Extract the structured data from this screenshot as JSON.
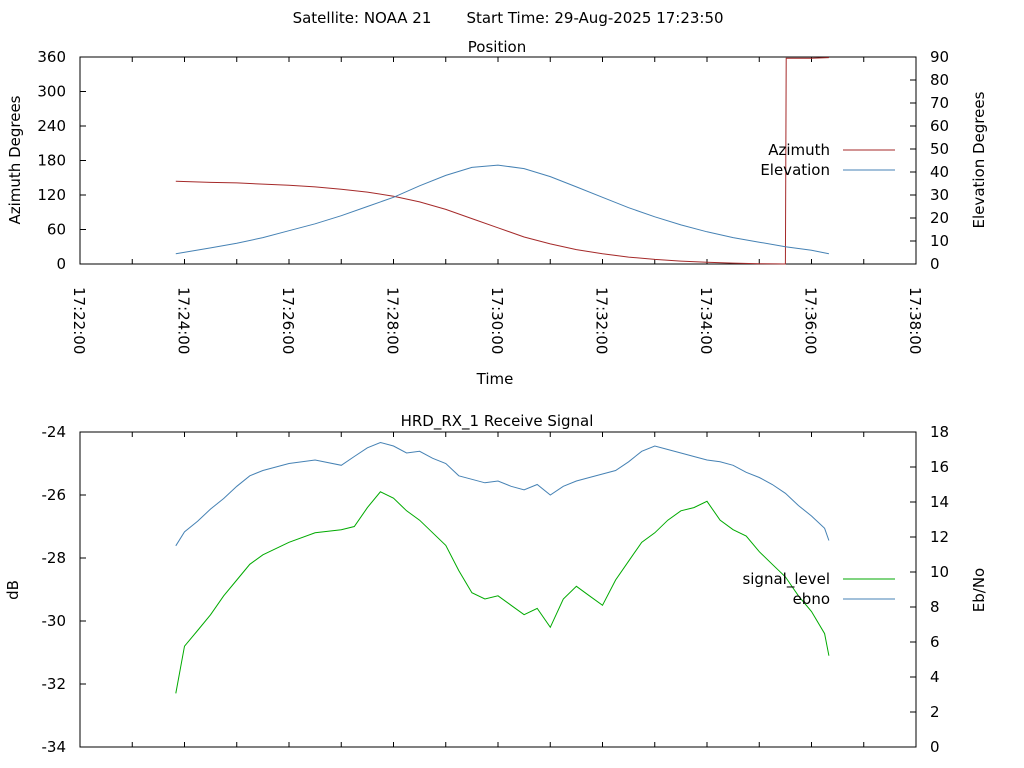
{
  "header": {
    "satellite_label": "Satellite: NOAA 21",
    "start_time_label": "Start Time: 29-Aug-2025 17:23:50"
  },
  "chart_data": [
    {
      "type": "line",
      "title": "Position",
      "xlabel": "Time",
      "ylabel": "Azimuth Degrees",
      "y2label": "Elevation Degrees",
      "xlim": [
        "17:22:00",
        "17:38:00"
      ],
      "ylim": [
        0,
        360
      ],
      "y2lim": [
        0,
        90
      ],
      "x_ticks": [
        "17:22:00",
        "17:24:00",
        "17:26:00",
        "17:28:00",
        "17:30:00",
        "17:32:00",
        "17:34:00",
        "17:36:00",
        "17:38:00"
      ],
      "y_ticks": [
        "0",
        "60",
        "120",
        "180",
        "240",
        "300",
        "360"
      ],
      "y2_ticks": [
        "0",
        "10",
        "20",
        "30",
        "40",
        "50",
        "60",
        "70",
        "80",
        "90"
      ],
      "legend_position": "right",
      "grid": false,
      "series": [
        {
          "name": "Azimuth",
          "axis": "left",
          "color": "#a52a2a",
          "x": [
            "17:23:50",
            "17:24:30",
            "17:25:00",
            "17:25:30",
            "17:26:00",
            "17:26:30",
            "17:27:00",
            "17:27:30",
            "17:28:00",
            "17:28:30",
            "17:29:00",
            "17:29:30",
            "17:30:00",
            "17:30:30",
            "17:31:00",
            "17:31:30",
            "17:32:00",
            "17:32:30",
            "17:33:00",
            "17:33:30",
            "17:34:00",
            "17:34:30",
            "17:35:00",
            "17:35:20",
            "17:35:30",
            "17:35:31",
            "17:36:00",
            "17:36:20"
          ],
          "values": [
            144,
            142,
            141,
            139,
            137,
            134,
            130,
            125,
            118,
            108,
            95,
            79,
            63,
            47,
            35,
            25,
            18,
            12,
            8,
            5,
            3,
            1.5,
            0.5,
            0.2,
            0,
            358,
            358,
            359
          ]
        },
        {
          "name": "Elevation",
          "axis": "right",
          "color": "#4682b4",
          "x": [
            "17:23:50",
            "17:24:30",
            "17:25:00",
            "17:25:30",
            "17:26:00",
            "17:26:30",
            "17:27:00",
            "17:27:30",
            "17:28:00",
            "17:28:30",
            "17:29:00",
            "17:29:30",
            "17:30:00",
            "17:30:30",
            "17:31:00",
            "17:31:30",
            "17:32:00",
            "17:32:30",
            "17:33:00",
            "17:33:30",
            "17:34:00",
            "17:34:30",
            "17:35:00",
            "17:35:30",
            "17:36:00",
            "17:36:20"
          ],
          "values": [
            4.5,
            7,
            9,
            11.5,
            14.5,
            17.5,
            21,
            25,
            29,
            34,
            38.5,
            42,
            43,
            41.5,
            38,
            33.5,
            29,
            24.5,
            20.5,
            17,
            14,
            11.5,
            9.5,
            7.5,
            6,
            4.5
          ]
        }
      ]
    },
    {
      "type": "line",
      "title": "HRD_RX_1 Receive Signal",
      "ylabel": "dB",
      "y2label": "Eb/No",
      "ylim": [
        -34,
        -24
      ],
      "y2lim": [
        0,
        18
      ],
      "y_ticks": [
        "-24",
        "-26",
        "-28",
        "-30",
        "-32",
        "-34"
      ],
      "y2_ticks": [
        "0",
        "2",
        "4",
        "6",
        "8",
        "10",
        "12",
        "14",
        "16",
        "18"
      ],
      "legend_position": "right",
      "grid": false,
      "series": [
        {
          "name": "signal_level",
          "axis": "left",
          "color": "#00aa00",
          "x": [
            "17:23:50",
            "17:24:00",
            "17:24:15",
            "17:24:30",
            "17:24:45",
            "17:25:00",
            "17:25:15",
            "17:25:30",
            "17:26:00",
            "17:26:30",
            "17:27:00",
            "17:27:15",
            "17:27:30",
            "17:27:45",
            "17:28:00",
            "17:28:15",
            "17:28:30",
            "17:28:45",
            "17:29:00",
            "17:29:15",
            "17:29:30",
            "17:29:45",
            "17:30:00",
            "17:30:15",
            "17:30:30",
            "17:30:45",
            "17:31:00",
            "17:31:15",
            "17:31:30",
            "17:31:45",
            "17:32:00",
            "17:32:15",
            "17:32:30",
            "17:32:45",
            "17:33:00",
            "17:33:15",
            "17:33:30",
            "17:33:45",
            "17:34:00",
            "17:34:15",
            "17:34:30",
            "17:34:45",
            "17:35:00",
            "17:35:15",
            "17:35:30",
            "17:35:45",
            "17:36:00",
            "17:36:15",
            "17:36:20"
          ],
          "values": [
            -32.3,
            -30.8,
            -30.3,
            -29.8,
            -29.2,
            -28.7,
            -28.2,
            -27.9,
            -27.5,
            -27.2,
            -27.1,
            -27.0,
            -26.4,
            -25.9,
            -26.1,
            -26.5,
            -26.8,
            -27.2,
            -27.6,
            -28.4,
            -29.1,
            -29.3,
            -29.2,
            -29.5,
            -29.8,
            -29.6,
            -30.2,
            -29.3,
            -28.9,
            -29.2,
            -29.5,
            -28.7,
            -28.1,
            -27.5,
            -27.2,
            -26.8,
            -26.5,
            -26.4,
            -26.2,
            -26.8,
            -27.1,
            -27.3,
            -27.8,
            -28.2,
            -28.6,
            -29.2,
            -29.7,
            -30.4,
            -31.1
          ]
        },
        {
          "name": "ebno",
          "axis": "right",
          "color": "#4682b4",
          "x": [
            "17:23:50",
            "17:24:00",
            "17:24:15",
            "17:24:30",
            "17:24:45",
            "17:25:00",
            "17:25:15",
            "17:25:30",
            "17:26:00",
            "17:26:30",
            "17:27:00",
            "17:27:15",
            "17:27:30",
            "17:27:45",
            "17:28:00",
            "17:28:15",
            "17:28:30",
            "17:28:45",
            "17:29:00",
            "17:29:15",
            "17:29:30",
            "17:29:45",
            "17:30:00",
            "17:30:15",
            "17:30:30",
            "17:30:45",
            "17:31:00",
            "17:31:15",
            "17:31:30",
            "17:31:45",
            "17:32:00",
            "17:32:15",
            "17:32:30",
            "17:32:45",
            "17:33:00",
            "17:33:15",
            "17:33:30",
            "17:33:45",
            "17:34:00",
            "17:34:15",
            "17:34:30",
            "17:34:45",
            "17:35:00",
            "17:35:15",
            "17:35:30",
            "17:35:45",
            "17:36:00",
            "17:36:15",
            "17:36:20"
          ],
          "values": [
            11.5,
            12.3,
            12.9,
            13.6,
            14.2,
            14.9,
            15.5,
            15.8,
            16.2,
            16.4,
            16.1,
            16.6,
            17.1,
            17.4,
            17.2,
            16.8,
            16.9,
            16.5,
            16.2,
            15.5,
            15.3,
            15.1,
            15.2,
            14.9,
            14.7,
            15.0,
            14.4,
            14.9,
            15.2,
            15.4,
            15.6,
            15.8,
            16.3,
            16.9,
            17.2,
            17.0,
            16.8,
            16.6,
            16.4,
            16.3,
            16.1,
            15.7,
            15.4,
            15.0,
            14.5,
            13.8,
            13.2,
            12.5,
            11.8
          ]
        }
      ]
    }
  ]
}
